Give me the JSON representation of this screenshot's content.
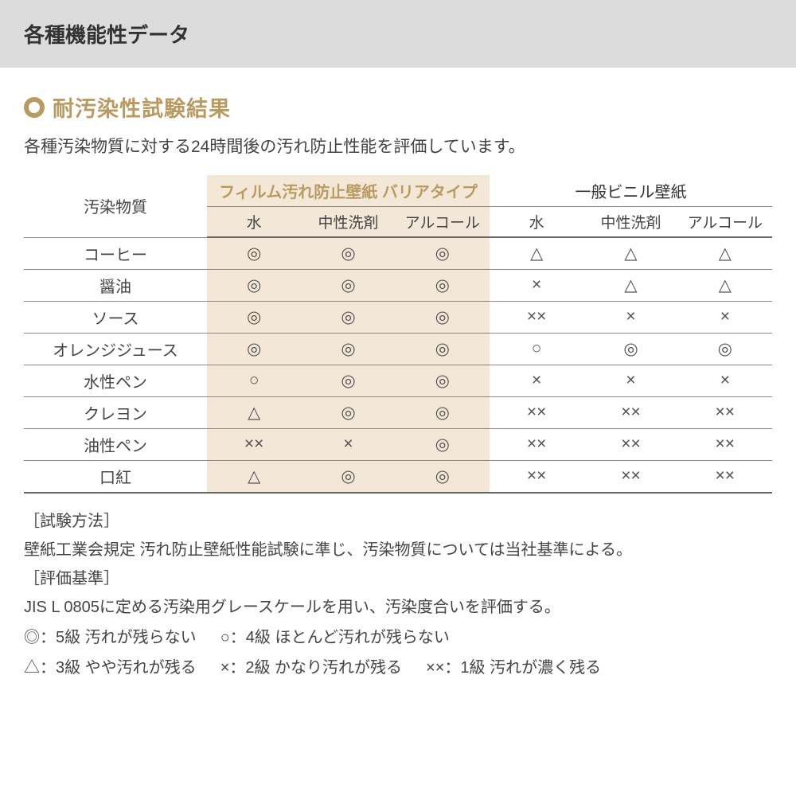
{
  "header": {
    "title": "各種機能性データ"
  },
  "section": {
    "title": "耐汚染性試験結果",
    "description": "各種汚染物質に対する24時間後の汚れ防止性能を評価しています。",
    "accent_color": "#b99a62",
    "highlight_bg": "#f3e8d8"
  },
  "table": {
    "row_header": "汚染物質",
    "groups": [
      {
        "label": "フィルム汚れ防止壁紙 バリアタイプ",
        "highlighted": true
      },
      {
        "label": "一般ビニル壁紙",
        "highlighted": false
      }
    ],
    "subcols": [
      "水",
      "中性洗剤",
      "アルコール",
      "水",
      "中性洗剤",
      "アルコール"
    ],
    "rows": [
      {
        "label": "コーヒー",
        "cells": [
          "◎",
          "◎",
          "◎",
          "△",
          "△",
          "△"
        ]
      },
      {
        "label": "醤油",
        "cells": [
          "◎",
          "◎",
          "◎",
          "×",
          "△",
          "△"
        ]
      },
      {
        "label": "ソース",
        "cells": [
          "◎",
          "◎",
          "◎",
          "××",
          "×",
          "×"
        ]
      },
      {
        "label": "オレンジジュース",
        "cells": [
          "◎",
          "◎",
          "◎",
          "○",
          "◎",
          "◎"
        ]
      },
      {
        "label": "水性ペン",
        "cells": [
          "○",
          "◎",
          "◎",
          "×",
          "×",
          "×"
        ]
      },
      {
        "label": "クレヨン",
        "cells": [
          "△",
          "◎",
          "◎",
          "××",
          "××",
          "××"
        ]
      },
      {
        "label": "油性ペン",
        "cells": [
          "××",
          "×",
          "◎",
          "××",
          "××",
          "××"
        ]
      },
      {
        "label": "口紅",
        "cells": [
          "△",
          "◎",
          "◎",
          "××",
          "××",
          "××"
        ]
      }
    ]
  },
  "notes": {
    "method_label": "［試験方法］",
    "method_text": "壁紙工業会規定 汚れ防止壁紙性能試験に準じ、汚染物質については当社基準による。",
    "criteria_label": "［評価基準］",
    "criteria_text": "JIS L 0805に定める汚染用グレースケールを用い、汚染度合いを評価する。",
    "legend_1a": "◎：5級 汚れが残らない",
    "legend_1b": "○：4級 ほとんど汚れが残らない",
    "legend_2a": "△：3級 やや汚れが残る",
    "legend_2b": "×：2級 かなり汚れが残る",
    "legend_2c": "××：1級 汚れが濃く残る"
  }
}
